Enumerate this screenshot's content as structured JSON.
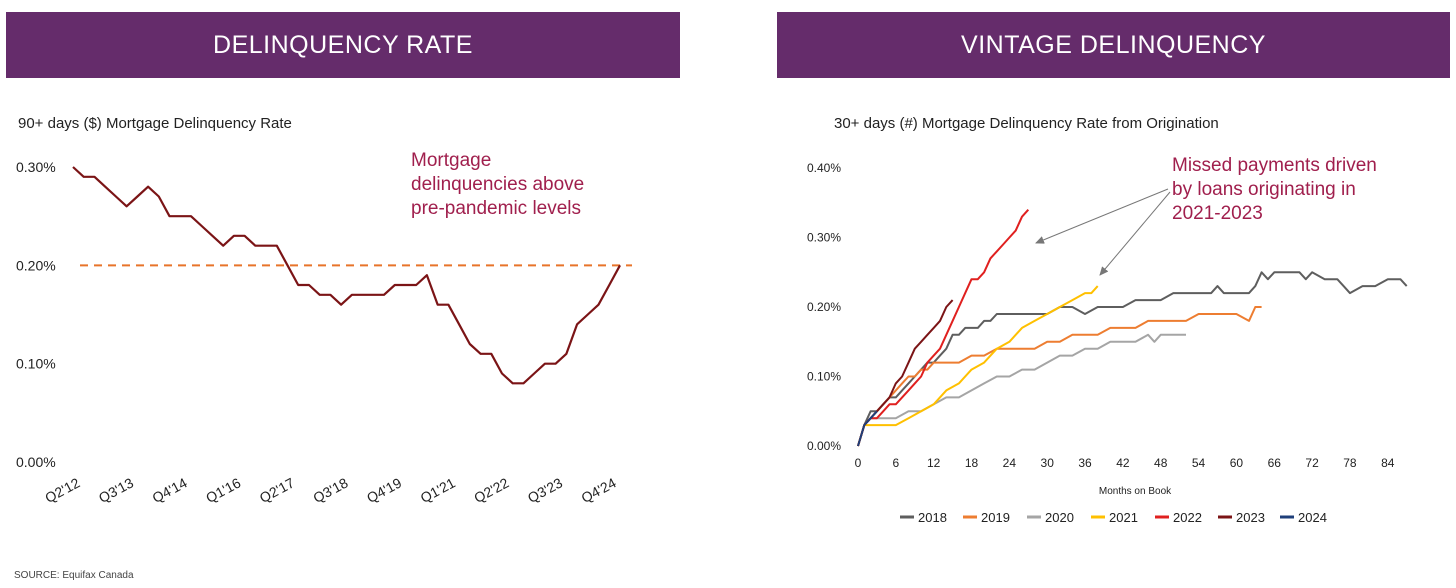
{
  "left_panel": {
    "banner": "DELINQUENCY RATE",
    "title": "90+ days ($) Mortgage Delinquency Rate",
    "annotation_lines": [
      "Mortgage",
      "delinquencies above",
      "pre-pandemic levels"
    ]
  },
  "right_panel": {
    "banner": "VINTAGE DELINQUENCY",
    "title": "30+ days (#) Mortgage Delinquency Rate from Origination",
    "annotation_lines": [
      "Missed payments driven",
      "by loans originating in",
      "2021-2023"
    ]
  },
  "source": "SOURCE: Equifax Canada",
  "colors": {
    "banner": "#652c6b",
    "annotation": "#a01f4d"
  },
  "chart_data": [
    {
      "type": "line",
      "title": "90+ days ($) Mortgage Delinquency Rate",
      "xlabel": "",
      "ylabel": "",
      "ylim": [
        0,
        0.3
      ],
      "y_ticks": [
        0,
        0.1,
        0.2,
        0.3
      ],
      "y_tick_labels": [
        "0.00%",
        "0.10%",
        "0.20%",
        "0.30%"
      ],
      "x_tick_labels": [
        "Q2'12",
        "Q3'13",
        "Q4'14",
        "Q1'16",
        "Q2'17",
        "Q3'18",
        "Q4'19",
        "Q1'21",
        "Q2'22",
        "Q3'23",
        "Q4'24"
      ],
      "x_tick_indices": [
        0,
        5,
        10,
        15,
        20,
        25,
        30,
        35,
        40,
        45,
        50
      ],
      "reference_line": {
        "value": 0.2,
        "style": "dashed",
        "color": "#e8742a"
      },
      "series": [
        {
          "name": "90+ days delinquency rate",
          "color": "#7b1416",
          "values": [
            0.3,
            0.29,
            0.29,
            0.28,
            0.27,
            0.26,
            0.27,
            0.28,
            0.27,
            0.25,
            0.25,
            0.25,
            0.24,
            0.23,
            0.22,
            0.23,
            0.23,
            0.22,
            0.22,
            0.22,
            0.2,
            0.18,
            0.18,
            0.17,
            0.17,
            0.16,
            0.17,
            0.17,
            0.17,
            0.17,
            0.18,
            0.18,
            0.18,
            0.19,
            0.16,
            0.16,
            0.14,
            0.12,
            0.11,
            0.11,
            0.09,
            0.08,
            0.08,
            0.09,
            0.1,
            0.1,
            0.11,
            0.14,
            0.15,
            0.16,
            0.18,
            0.2
          ]
        }
      ]
    },
    {
      "type": "line",
      "title": "30+ days (#) Mortgage Delinquency Rate from Origination",
      "xlabel": "Months on Book",
      "ylabel": "",
      "xlim": [
        0,
        88
      ],
      "ylim": [
        0,
        0.4
      ],
      "x_ticks": [
        0,
        6,
        12,
        18,
        24,
        30,
        36,
        42,
        48,
        54,
        60,
        66,
        72,
        78,
        84
      ],
      "y_ticks": [
        0,
        0.1,
        0.2,
        0.3,
        0.4
      ],
      "y_tick_labels": [
        "0.00%",
        "0.10%",
        "0.20%",
        "0.30%",
        "0.40%"
      ],
      "legend_position": "bottom",
      "series": [
        {
          "name": "2018",
          "color": "#5e5e5e",
          "x": [
            0,
            1,
            2,
            3,
            4,
            5,
            6,
            7,
            8,
            9,
            10,
            11,
            12,
            13,
            14,
            15,
            16,
            17,
            18,
            19,
            20,
            21,
            22,
            23,
            24,
            26,
            28,
            30,
            32,
            34,
            36,
            38,
            40,
            42,
            44,
            46,
            48,
            50,
            52,
            54,
            56,
            57,
            58,
            60,
            62,
            63,
            64,
            65,
            66,
            68,
            70,
            71,
            72,
            74,
            76,
            77,
            78,
            80,
            82,
            84,
            86,
            87
          ],
          "y": [
            0,
            0.03,
            0.05,
            0.05,
            0.06,
            0.07,
            0.07,
            0.08,
            0.09,
            0.1,
            0.11,
            0.12,
            0.12,
            0.13,
            0.14,
            0.16,
            0.16,
            0.17,
            0.17,
            0.17,
            0.18,
            0.18,
            0.19,
            0.19,
            0.19,
            0.19,
            0.19,
            0.19,
            0.2,
            0.2,
            0.19,
            0.2,
            0.2,
            0.2,
            0.21,
            0.21,
            0.21,
            0.22,
            0.22,
            0.22,
            0.22,
            0.23,
            0.22,
            0.22,
            0.22,
            0.23,
            0.25,
            0.24,
            0.25,
            0.25,
            0.25,
            0.24,
            0.25,
            0.24,
            0.24,
            0.23,
            0.22,
            0.23,
            0.23,
            0.24,
            0.24,
            0.23
          ]
        },
        {
          "name": "2019",
          "color": "#ed7d31",
          "x": [
            0,
            1,
            2,
            3,
            4,
            5,
            6,
            7,
            8,
            9,
            10,
            11,
            12,
            14,
            16,
            18,
            20,
            22,
            24,
            26,
            28,
            30,
            32,
            34,
            36,
            38,
            40,
            42,
            44,
            46,
            48,
            50,
            52,
            54,
            56,
            58,
            60,
            62,
            63,
            64
          ],
          "y": [
            0,
            0.03,
            0.04,
            0.05,
            0.06,
            0.07,
            0.08,
            0.09,
            0.1,
            0.1,
            0.11,
            0.11,
            0.12,
            0.12,
            0.12,
            0.13,
            0.13,
            0.14,
            0.14,
            0.14,
            0.14,
            0.15,
            0.15,
            0.16,
            0.16,
            0.16,
            0.17,
            0.17,
            0.17,
            0.18,
            0.18,
            0.18,
            0.18,
            0.19,
            0.19,
            0.19,
            0.19,
            0.18,
            0.2,
            0.2
          ]
        },
        {
          "name": "2020",
          "color": "#a5a5a5",
          "x": [
            0,
            1,
            2,
            4,
            6,
            8,
            10,
            12,
            14,
            16,
            18,
            20,
            22,
            24,
            26,
            28,
            30,
            32,
            34,
            36,
            38,
            40,
            42,
            44,
            46,
            47,
            48,
            50,
            52
          ],
          "y": [
            0,
            0.03,
            0.04,
            0.04,
            0.04,
            0.05,
            0.05,
            0.06,
            0.07,
            0.07,
            0.08,
            0.09,
            0.1,
            0.1,
            0.11,
            0.11,
            0.12,
            0.13,
            0.13,
            0.14,
            0.14,
            0.15,
            0.15,
            0.15,
            0.16,
            0.15,
            0.16,
            0.16,
            0.16
          ]
        },
        {
          "name": "2021",
          "color": "#ffc000",
          "x": [
            0,
            1,
            2,
            4,
            6,
            8,
            10,
            12,
            14,
            16,
            18,
            20,
            22,
            24,
            26,
            28,
            30,
            32,
            34,
            36,
            37,
            38
          ],
          "y": [
            0,
            0.03,
            0.03,
            0.03,
            0.03,
            0.04,
            0.05,
            0.06,
            0.08,
            0.09,
            0.11,
            0.12,
            0.14,
            0.15,
            0.17,
            0.18,
            0.19,
            0.2,
            0.21,
            0.22,
            0.22,
            0.23
          ]
        },
        {
          "name": "2022",
          "color": "#e0201f",
          "x": [
            0,
            1,
            2,
            3,
            4,
            5,
            6,
            7,
            8,
            9,
            10,
            11,
            12,
            13,
            14,
            15,
            16,
            17,
            18,
            19,
            20,
            21,
            22,
            23,
            24,
            25,
            26,
            27
          ],
          "y": [
            0,
            0.03,
            0.04,
            0.04,
            0.05,
            0.06,
            0.06,
            0.07,
            0.08,
            0.09,
            0.1,
            0.12,
            0.13,
            0.14,
            0.16,
            0.18,
            0.2,
            0.22,
            0.24,
            0.24,
            0.25,
            0.27,
            0.28,
            0.29,
            0.3,
            0.31,
            0.33,
            0.34
          ]
        },
        {
          "name": "2023",
          "color": "#7b1416",
          "x": [
            0,
            1,
            2,
            3,
            4,
            5,
            6,
            7,
            8,
            9,
            10,
            11,
            12,
            13,
            14,
            15
          ],
          "y": [
            0,
            0.03,
            0.04,
            0.05,
            0.06,
            0.07,
            0.09,
            0.1,
            0.12,
            0.14,
            0.15,
            0.16,
            0.17,
            0.18,
            0.2,
            0.21
          ]
        },
        {
          "name": "2024",
          "color": "#1f3f7a",
          "x": [
            0,
            1,
            2,
            3
          ],
          "y": [
            0,
            0.03,
            0.04,
            0.05
          ]
        }
      ]
    }
  ]
}
